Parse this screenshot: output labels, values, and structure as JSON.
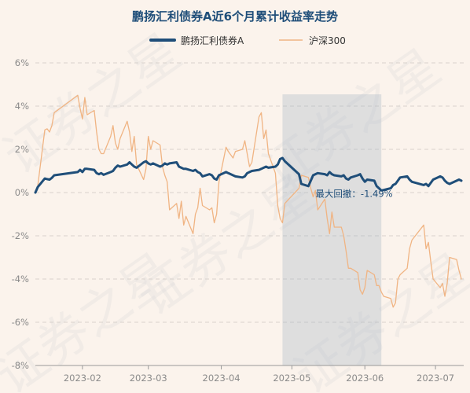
{
  "chart_data": {
    "type": "line",
    "title": "鹏扬汇利债券A近6个月累计收益率走势",
    "ylim": [
      -8,
      6
    ],
    "yticks": [
      6,
      4,
      2,
      0,
      -2,
      -4,
      -6,
      -8
    ],
    "ytick_format": "%",
    "xlim": [
      "2023-01-12",
      "2023-07-13"
    ],
    "xticks": [
      "2023-02",
      "2023-03",
      "2023-04",
      "2023-05",
      "2023-06",
      "2023-07"
    ],
    "grid": "horizontal-dashed",
    "legend": "top-center",
    "series": [
      {
        "name": "鹏扬汇利债券A",
        "color": "#1f4e79",
        "points": [
          [
            "2023-01-12",
            0.0
          ],
          [
            "2023-01-13",
            0.25
          ],
          [
            "2023-01-16",
            0.65
          ],
          [
            "2023-01-17",
            0.62
          ],
          [
            "2023-01-18",
            0.6
          ],
          [
            "2023-01-19",
            0.68
          ],
          [
            "2023-01-20",
            0.8
          ],
          [
            "2023-01-30",
            0.95
          ],
          [
            "2023-01-31",
            1.05
          ],
          [
            "2023-02-01",
            0.95
          ],
          [
            "2023-02-02",
            1.1
          ],
          [
            "2023-02-03",
            1.1
          ],
          [
            "2023-02-06",
            1.05
          ],
          [
            "2023-02-07",
            0.9
          ],
          [
            "2023-02-08",
            0.85
          ],
          [
            "2023-02-09",
            0.9
          ],
          [
            "2023-02-10",
            0.82
          ],
          [
            "2023-02-13",
            0.95
          ],
          [
            "2023-02-14",
            1.0
          ],
          [
            "2023-02-15",
            1.15
          ],
          [
            "2023-02-16",
            1.25
          ],
          [
            "2023-02-17",
            1.2
          ],
          [
            "2023-02-20",
            1.3
          ],
          [
            "2023-02-21",
            1.4
          ],
          [
            "2023-02-22",
            1.3
          ],
          [
            "2023-02-23",
            1.2
          ],
          [
            "2023-02-24",
            1.15
          ],
          [
            "2023-02-27",
            1.4
          ],
          [
            "2023-02-28",
            1.45
          ],
          [
            "2023-03-01",
            1.35
          ],
          [
            "2023-03-02",
            1.3
          ],
          [
            "2023-03-03",
            1.35
          ],
          [
            "2023-03-06",
            1.2
          ],
          [
            "2023-03-07",
            1.25
          ],
          [
            "2023-03-08",
            1.35
          ],
          [
            "2023-03-09",
            1.3
          ],
          [
            "2023-03-10",
            1.35
          ],
          [
            "2023-03-13",
            1.4
          ],
          [
            "2023-03-14",
            1.2
          ],
          [
            "2023-03-15",
            1.15
          ],
          [
            "2023-03-16",
            1.1
          ],
          [
            "2023-03-17",
            1.1
          ],
          [
            "2023-03-20",
            1.0
          ],
          [
            "2023-03-21",
            1.05
          ],
          [
            "2023-03-22",
            0.95
          ],
          [
            "2023-03-23",
            0.9
          ],
          [
            "2023-03-24",
            0.75
          ],
          [
            "2023-03-27",
            0.85
          ],
          [
            "2023-03-28",
            0.8
          ],
          [
            "2023-03-29",
            0.65
          ],
          [
            "2023-03-30",
            0.6
          ],
          [
            "2023-03-31",
            0.8
          ],
          [
            "2023-04-03",
            0.95
          ],
          [
            "2023-04-04",
            0.9
          ],
          [
            "2023-04-06",
            0.8
          ],
          [
            "2023-04-07",
            0.75
          ],
          [
            "2023-04-10",
            0.7
          ],
          [
            "2023-04-11",
            0.75
          ],
          [
            "2023-04-12",
            0.9
          ],
          [
            "2023-04-13",
            0.95
          ],
          [
            "2023-04-14",
            1.0
          ],
          [
            "2023-04-17",
            1.05
          ],
          [
            "2023-04-18",
            1.1
          ],
          [
            "2023-04-19",
            1.15
          ],
          [
            "2023-04-20",
            1.2
          ],
          [
            "2023-04-21",
            1.15
          ],
          [
            "2023-04-24",
            1.2
          ],
          [
            "2023-04-25",
            1.3
          ],
          [
            "2023-04-26",
            1.55
          ],
          [
            "2023-04-27",
            1.6
          ],
          [
            "2023-04-28",
            1.45
          ],
          [
            "2023-05-04",
            0.85
          ],
          [
            "2023-05-05",
            0.4
          ],
          [
            "2023-05-08",
            0.3
          ],
          [
            "2023-05-09",
            0.55
          ],
          [
            "2023-05-10",
            0.8
          ],
          [
            "2023-05-11",
            0.85
          ],
          [
            "2023-05-12",
            0.9
          ],
          [
            "2023-05-15",
            0.85
          ],
          [
            "2023-05-16",
            0.8
          ],
          [
            "2023-05-17",
            0.95
          ],
          [
            "2023-05-18",
            0.85
          ],
          [
            "2023-05-19",
            0.8
          ],
          [
            "2023-05-22",
            0.75
          ],
          [
            "2023-05-23",
            0.8
          ],
          [
            "2023-05-24",
            0.65
          ],
          [
            "2023-05-25",
            0.6
          ],
          [
            "2023-05-26",
            0.7
          ],
          [
            "2023-05-29",
            0.8
          ],
          [
            "2023-05-30",
            0.85
          ],
          [
            "2023-05-31",
            0.65
          ],
          [
            "2023-06-01",
            0.5
          ],
          [
            "2023-06-02",
            0.6
          ],
          [
            "2023-06-05",
            0.55
          ],
          [
            "2023-06-06",
            0.3
          ],
          [
            "2023-06-07",
            0.2
          ],
          [
            "2023-06-08",
            0.1
          ],
          [
            "2023-06-09",
            0.12
          ],
          [
            "2023-06-12",
            0.2
          ],
          [
            "2023-06-13",
            0.35
          ],
          [
            "2023-06-14",
            0.4
          ],
          [
            "2023-06-15",
            0.55
          ],
          [
            "2023-06-16",
            0.7
          ],
          [
            "2023-06-19",
            0.75
          ],
          [
            "2023-06-20",
            0.6
          ],
          [
            "2023-06-21",
            0.5
          ],
          [
            "2023-06-26",
            0.35
          ],
          [
            "2023-06-27",
            0.4
          ],
          [
            "2023-06-28",
            0.3
          ],
          [
            "2023-06-29",
            0.45
          ],
          [
            "2023-06-30",
            0.6
          ],
          [
            "2023-07-03",
            0.75
          ],
          [
            "2023-07-04",
            0.7
          ],
          [
            "2023-07-05",
            0.55
          ],
          [
            "2023-07-06",
            0.45
          ],
          [
            "2023-07-07",
            0.4
          ],
          [
            "2023-07-10",
            0.55
          ],
          [
            "2023-07-11",
            0.6
          ],
          [
            "2023-07-12",
            0.55
          ]
        ]
      },
      {
        "name": "沪深300",
        "color": "#f0b483",
        "points": [
          [
            "2023-01-12",
            0.0
          ],
          [
            "2023-01-13",
            0.3
          ],
          [
            "2023-01-16",
            2.9
          ],
          [
            "2023-01-17",
            2.95
          ],
          [
            "2023-01-18",
            2.8
          ],
          [
            "2023-01-19",
            3.1
          ],
          [
            "2023-01-20",
            3.7
          ],
          [
            "2023-01-30",
            4.5
          ],
          [
            "2023-01-31",
            3.9
          ],
          [
            "2023-02-01",
            3.4
          ],
          [
            "2023-02-02",
            4.4
          ],
          [
            "2023-02-03",
            3.6
          ],
          [
            "2023-02-06",
            3.8
          ],
          [
            "2023-02-07",
            2.8
          ],
          [
            "2023-02-08",
            2.0
          ],
          [
            "2023-02-09",
            1.8
          ],
          [
            "2023-02-10",
            1.8
          ],
          [
            "2023-02-13",
            2.6
          ],
          [
            "2023-02-14",
            3.1
          ],
          [
            "2023-02-15",
            2.3
          ],
          [
            "2023-02-16",
            2.0
          ],
          [
            "2023-02-17",
            2.5
          ],
          [
            "2023-02-20",
            3.3
          ],
          [
            "2023-02-21",
            2.8
          ],
          [
            "2023-02-22",
            1.9
          ],
          [
            "2023-02-23",
            2.6
          ],
          [
            "2023-02-24",
            1.3
          ],
          [
            "2023-02-27",
            0.6
          ],
          [
            "2023-02-28",
            1.1
          ],
          [
            "2023-03-01",
            2.6
          ],
          [
            "2023-03-02",
            2.0
          ],
          [
            "2023-03-03",
            2.4
          ],
          [
            "2023-03-06",
            2.2
          ],
          [
            "2023-03-07",
            1.2
          ],
          [
            "2023-03-08",
            0.8
          ],
          [
            "2023-03-09",
            0.5
          ],
          [
            "2023-03-10",
            -0.8
          ],
          [
            "2023-03-13",
            -0.5
          ],
          [
            "2023-03-14",
            -1.2
          ],
          [
            "2023-03-15",
            -0.4
          ],
          [
            "2023-03-16",
            -1.5
          ],
          [
            "2023-03-17",
            -1.1
          ],
          [
            "2023-03-20",
            -1.9
          ],
          [
            "2023-03-21",
            -1.0
          ],
          [
            "2023-03-22",
            -0.7
          ],
          [
            "2023-03-23",
            0.2
          ],
          [
            "2023-03-24",
            -0.6
          ],
          [
            "2023-03-27",
            -0.8
          ],
          [
            "2023-03-28",
            -0.7
          ],
          [
            "2023-03-29",
            -1.4
          ],
          [
            "2023-03-30",
            -1.0
          ],
          [
            "2023-03-31",
            0.5
          ],
          [
            "2023-04-03",
            2.1
          ],
          [
            "2023-04-04",
            1.9
          ],
          [
            "2023-04-06",
            1.6
          ],
          [
            "2023-04-07",
            1.9
          ],
          [
            "2023-04-10",
            2.0
          ],
          [
            "2023-04-11",
            2.4
          ],
          [
            "2023-04-12",
            1.8
          ],
          [
            "2023-04-13",
            1.2
          ],
          [
            "2023-04-14",
            1.4
          ],
          [
            "2023-04-17",
            3.5
          ],
          [
            "2023-04-18",
            3.7
          ],
          [
            "2023-04-19",
            2.5
          ],
          [
            "2023-04-20",
            2.9
          ],
          [
            "2023-04-21",
            1.8
          ],
          [
            "2023-04-24",
            0.9
          ],
          [
            "2023-04-25",
            -0.6
          ],
          [
            "2023-04-26",
            -1.2
          ],
          [
            "2023-04-27",
            -1.4
          ],
          [
            "2023-04-28",
            -0.5
          ],
          [
            "2023-05-04",
            0.2
          ],
          [
            "2023-05-05",
            0.8
          ],
          [
            "2023-05-08",
            0.7
          ],
          [
            "2023-05-09",
            0.2
          ],
          [
            "2023-05-10",
            -0.2
          ],
          [
            "2023-05-11",
            0.1
          ],
          [
            "2023-05-12",
            -0.8
          ],
          [
            "2023-05-15",
            -0.3
          ],
          [
            "2023-05-16",
            -1.2
          ],
          [
            "2023-05-17",
            -1.9
          ],
          [
            "2023-05-18",
            -0.9
          ],
          [
            "2023-05-19",
            -1.6
          ],
          [
            "2023-05-22",
            -1.6
          ],
          [
            "2023-05-23",
            -2.0
          ],
          [
            "2023-05-24",
            -2.7
          ],
          [
            "2023-05-25",
            -3.5
          ],
          [
            "2023-05-26",
            -3.5
          ],
          [
            "2023-05-29",
            -3.7
          ],
          [
            "2023-05-30",
            -4.5
          ],
          [
            "2023-05-31",
            -4.7
          ],
          [
            "2023-06-01",
            -4.4
          ],
          [
            "2023-06-02",
            -3.6
          ],
          [
            "2023-06-05",
            -3.8
          ],
          [
            "2023-06-06",
            -4.3
          ],
          [
            "2023-06-07",
            -4.3
          ],
          [
            "2023-06-08",
            -4.6
          ],
          [
            "2023-06-09",
            -4.8
          ],
          [
            "2023-06-12",
            -4.9
          ],
          [
            "2023-06-13",
            -5.3
          ],
          [
            "2023-06-14",
            -5.1
          ],
          [
            "2023-06-15",
            -4.0
          ],
          [
            "2023-06-16",
            -3.8
          ],
          [
            "2023-06-19",
            -3.5
          ],
          [
            "2023-06-20",
            -2.6
          ],
          [
            "2023-06-21",
            -2.2
          ],
          [
            "2023-06-26",
            -1.5
          ],
          [
            "2023-06-27",
            -2.6
          ],
          [
            "2023-06-28",
            -2.3
          ],
          [
            "2023-06-29",
            -3.2
          ],
          [
            "2023-06-30",
            -4.0
          ],
          [
            "2023-07-03",
            -4.4
          ],
          [
            "2023-07-04",
            -4.2
          ],
          [
            "2023-07-05",
            -4.8
          ],
          [
            "2023-07-06",
            -4.2
          ],
          [
            "2023-07-07",
            -3.0
          ],
          [
            "2023-07-10",
            -3.1
          ],
          [
            "2023-07-11",
            -3.6
          ],
          [
            "2023-07-12",
            -4.0
          ]
        ]
      }
    ],
    "drawdown": {
      "label": "最大回撤：-1.49%",
      "start": "2023-04-27",
      "end": "2023-06-08",
      "color": "#a9b8c6"
    },
    "watermark": "证券之星"
  }
}
